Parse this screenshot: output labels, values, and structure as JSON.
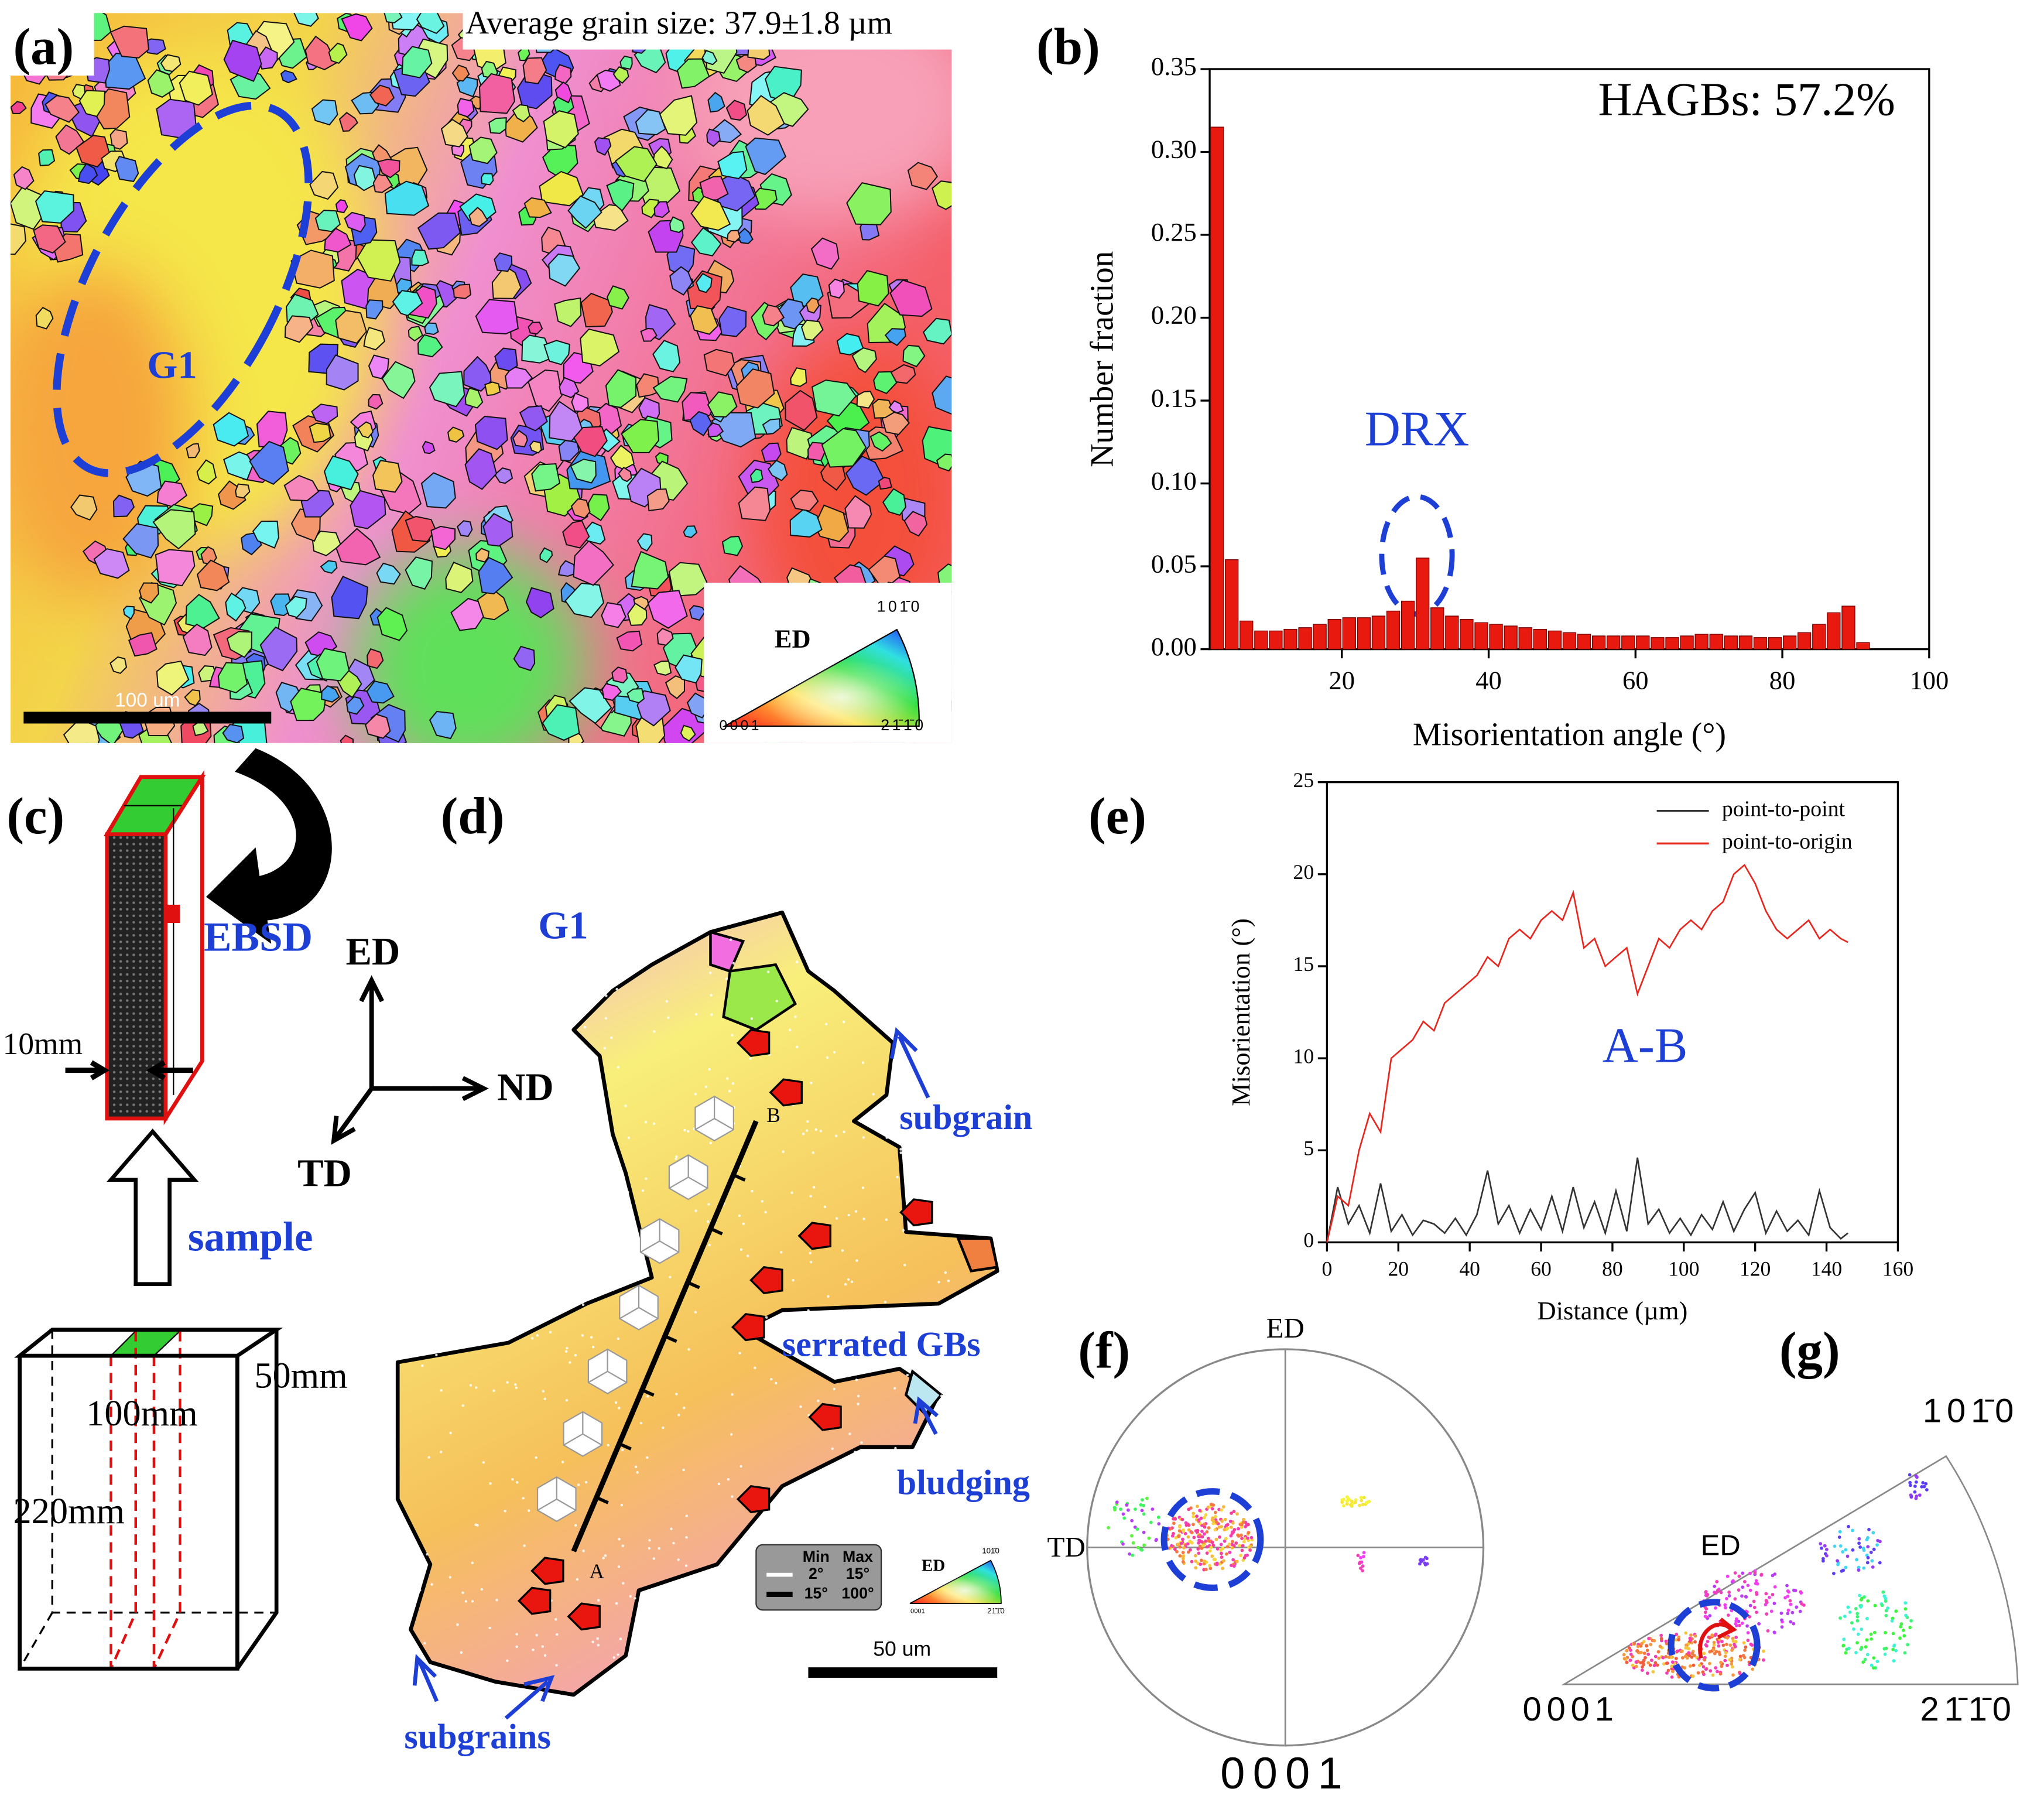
{
  "chart_data": [
    {
      "type": "histogram",
      "xlabel": "Misorientation angle (°)",
      "ylabel": "Number fraction",
      "annotations": [
        "HAGBs: 57.2%",
        "DRX"
      ],
      "bins": [
        2,
        4,
        6,
        8,
        10,
        12,
        14,
        16,
        18,
        20,
        22,
        24,
        26,
        28,
        30,
        32,
        34,
        36,
        38,
        40,
        42,
        44,
        46,
        48,
        50,
        52,
        54,
        56,
        58,
        60,
        62,
        64,
        66,
        68,
        70,
        72,
        74,
        76,
        78,
        80,
        82,
        84,
        86,
        88,
        90,
        92
      ],
      "values": [
        0.315,
        0.054,
        0.017,
        0.011,
        0.011,
        0.012,
        0.013,
        0.015,
        0.018,
        0.019,
        0.019,
        0.02,
        0.023,
        0.029,
        0.055,
        0.025,
        0.02,
        0.018,
        0.016,
        0.015,
        0.014,
        0.013,
        0.012,
        0.011,
        0.01,
        0.009,
        0.008,
        0.008,
        0.008,
        0.008,
        0.007,
        0.007,
        0.008,
        0.009,
        0.009,
        0.008,
        0.008,
        0.007,
        0.007,
        0.008,
        0.01,
        0.015,
        0.022,
        0.026,
        0.004
      ],
      "color": "#e8190f",
      "xlim": [
        2,
        100
      ],
      "xticks": [
        20,
        40,
        60,
        80,
        100
      ],
      "ylim": [
        0,
        0.35
      ],
      "yticks": [
        {
          "value": 0,
          "label": "0.00"
        },
        0.05,
        {
          "value": 0.1,
          "label": "0.10"
        },
        0.15,
        {
          "value": 0.2,
          "label": "0.20"
        },
        0.25,
        {
          "value": 0.3,
          "label": "0.30"
        },
        0.35
      ]
    },
    {
      "type": "line",
      "xlabel": "Distance (µm)",
      "ylabel": "Misorientation (°)",
      "annotations": [
        "A-B"
      ],
      "x": [
        0,
        3,
        6,
        9,
        12,
        15,
        18,
        21,
        24,
        27,
        30,
        33,
        36,
        39,
        42,
        45,
        48,
        51,
        54,
        57,
        60,
        63,
        66,
        69,
        72,
        75,
        78,
        81,
        84,
        87,
        90,
        93,
        96,
        99,
        102,
        105,
        108,
        111,
        114,
        117,
        120,
        123,
        126,
        129,
        132,
        135,
        138,
        141,
        144,
        146
      ],
      "series": [
        {
          "name": "point-to-point",
          "color": "#333333",
          "values": [
            0,
            3,
            1,
            2,
            0.5,
            3.2,
            0.6,
            1.5,
            0.4,
            1.2,
            1,
            0.5,
            1.3,
            0.4,
            1.5,
            3.9,
            1,
            2,
            0.5,
            1.8,
            0.7,
            2.5,
            0.6,
            3,
            0.8,
            2.2,
            0.5,
            2.8,
            0.6,
            4.6,
            1,
            1.8,
            0.5,
            1.3,
            0.4,
            1.5,
            0.7,
            2.2,
            0.6,
            1.8,
            2.7,
            0.5,
            1.7,
            0.6,
            1.2,
            0.4,
            2.8,
            0.8,
            0.2,
            0.5
          ]
        },
        {
          "name": "point-to-origin",
          "color": "#e8261e",
          "values": [
            0,
            2.5,
            2,
            5,
            7,
            6,
            10,
            10.5,
            11,
            12,
            11.5,
            13,
            13.5,
            14,
            14.5,
            15.5,
            15,
            16.5,
            17,
            16.5,
            17.5,
            18,
            17.5,
            19,
            16,
            16.5,
            15,
            15.5,
            16,
            13.5,
            15,
            16.5,
            16,
            17,
            17.5,
            17,
            18,
            18.5,
            20,
            20.5,
            19.5,
            18,
            17,
            16.5,
            17,
            17.5,
            16.5,
            17,
            16.5,
            16.3
          ]
        }
      ],
      "xlim": [
        0,
        160
      ],
      "xticks": [
        0,
        20,
        40,
        60,
        80,
        100,
        120,
        140,
        160
      ],
      "ylim": [
        0,
        25
      ],
      "yticks": [
        0,
        5,
        10,
        15,
        20,
        25
      ],
      "legend": "upper right"
    }
  ],
  "panels": {
    "a": {
      "label": "(a)",
      "caption": "Average grain size: 37.9±1.8 µm",
      "grain": "G1",
      "scale_bar": "100 um",
      "ipf": {
        "direction": "ED",
        "top": "101̄0",
        "left": "0001",
        "right": "21̄1̄0"
      }
    },
    "b": {
      "label": "(b)"
    },
    "c": {
      "label": "(c)",
      "ebsd": "EBSD",
      "thickness": "10mm",
      "sample": "sample",
      "width": "50mm",
      "length": "100mm",
      "height": "220mm"
    },
    "axes": {
      "ed": "ED",
      "nd": "ND",
      "td": "TD"
    },
    "d": {
      "label": "(d)",
      "grain": "G1",
      "point_a": "A",
      "point_b": "B",
      "subgrain": "subgrain",
      "serrated": "serrated GBs",
      "bulging": "bludging",
      "subgrains": "subgrains",
      "scale_bar": "50 um",
      "legend": {
        "min": "Min",
        "max": "Max",
        "low_min": "2°",
        "low_max": "15°",
        "high_min": "15°",
        "high_max": "100°"
      },
      "ipf": {
        "direction": "ED",
        "top": "101̄0",
        "left": "0001",
        "right": "21̄1̄0"
      }
    },
    "e": {
      "label": "(e)"
    },
    "f": {
      "label": "(f)",
      "top": "ED",
      "left": "TD",
      "bottom": "0001"
    },
    "g": {
      "label": "(g)",
      "top": "101̄0",
      "direction": "ED",
      "left": "0001",
      "right": "21̄1̄0"
    }
  }
}
